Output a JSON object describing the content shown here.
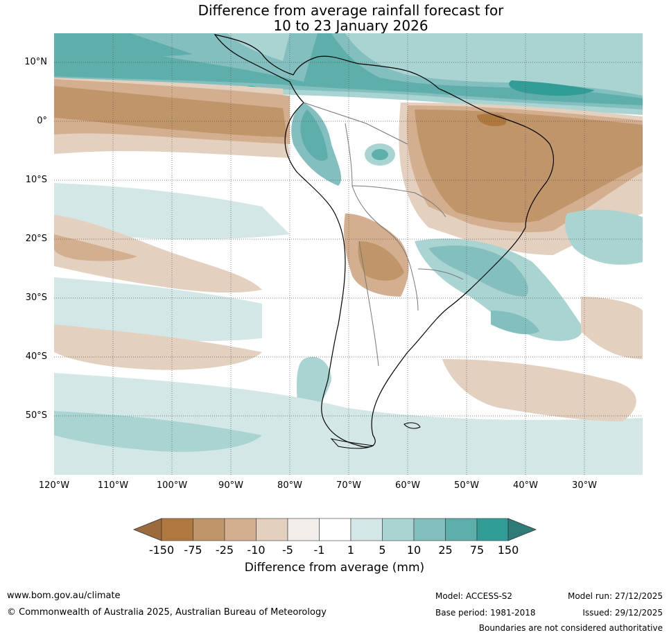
{
  "title": {
    "line1": "Difference from average rainfall forecast for",
    "line2": "10 to 23 January 2026"
  },
  "map": {
    "lat_labels": [
      "10°N",
      "0°",
      "10°S",
      "20°S",
      "30°S",
      "40°S",
      "50°S"
    ],
    "lon_labels": [
      "120°W",
      "110°W",
      "100°W",
      "90°W",
      "80°W",
      "70°W",
      "60°W",
      "50°W",
      "40°W",
      "30°W"
    ],
    "lon_range": [
      -120,
      -20
    ],
    "lat_range": [
      -60,
      15
    ],
    "continent_icon": "south-america-outline"
  },
  "colorbar": {
    "ticks": [
      "-150",
      "-75",
      "-25",
      "-10",
      "-5",
      "-1",
      "1",
      "5",
      "10",
      "25",
      "75",
      "150"
    ],
    "colors": [
      "#9c6a3c",
      "#ae783f",
      "#c1956a",
      "#d3af8f",
      "#e3d0bf",
      "#f3eee9",
      "#ffffff",
      "#d3e8e6",
      "#aad4d2",
      "#83bfbe",
      "#5eaeab",
      "#329c97",
      "#2e7b78"
    ],
    "label": "Difference from average (mm)"
  },
  "footer": {
    "website": "www.bom.gov.au/climate",
    "copyright": "© Commonwealth of Australia 2025, Australian Bureau of Meteorology",
    "model": "Model: ACCESS-S2",
    "base_period": "Base period: 1981-2018",
    "model_run": "Model run: 27/12/2025",
    "issued": "Issued: 29/12/2025",
    "disclaimer": "Boundaries are not considered authoritative"
  }
}
